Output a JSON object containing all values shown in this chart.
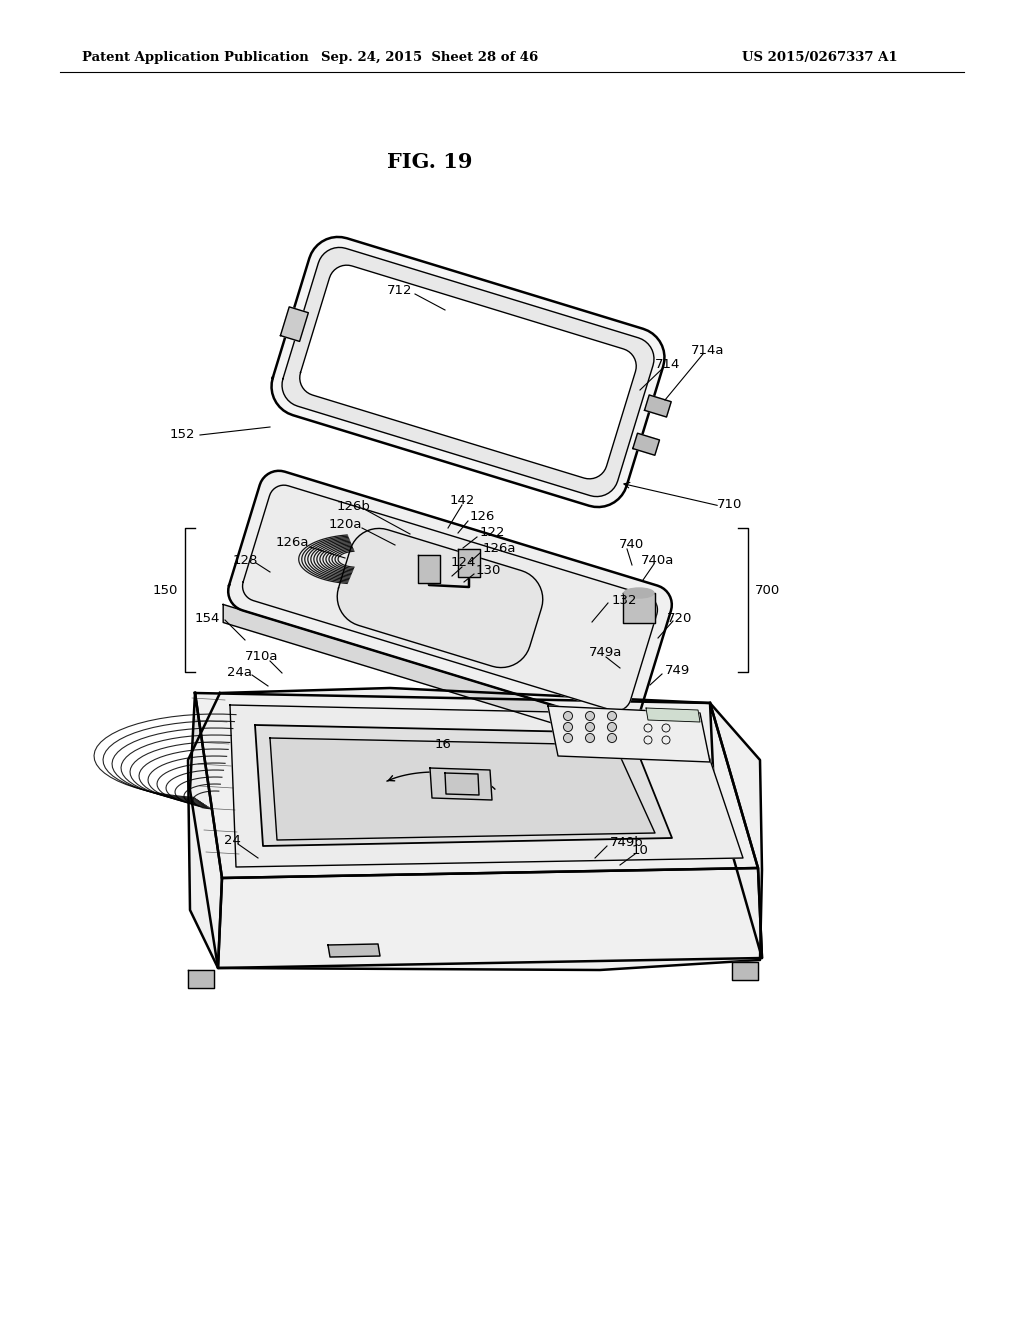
{
  "title": "FIG. 19",
  "header_left": "Patent Application Publication",
  "header_center": "Sep. 24, 2015  Sheet 28 of 46",
  "header_right": "US 2015/0267337 A1",
  "background_color": "#ffffff",
  "line_color": "#000000"
}
